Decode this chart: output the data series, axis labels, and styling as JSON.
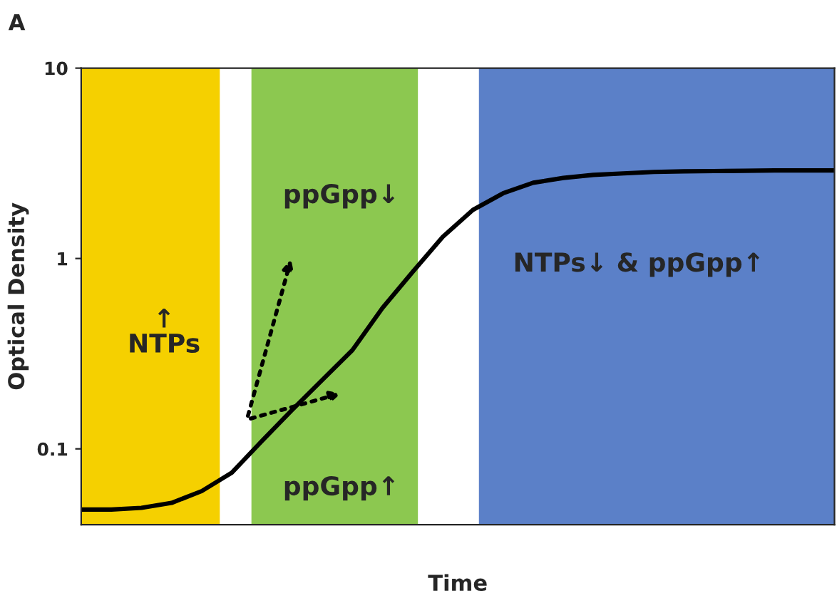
{
  "chart_data": {
    "type": "line",
    "title": "A",
    "xlabel": "Time",
    "ylabel": "Optical Density",
    "categories": [
      null,
      null,
      null,
      null,
      null,
      null,
      null,
      null,
      null,
      null,
      null,
      null,
      null,
      null,
      null,
      null,
      null,
      null,
      null,
      null,
      null,
      null,
      null,
      null,
      null,
      null
    ],
    "series": [
      {
        "color": "#000000",
        "values": [
          0.048,
          0.048,
          0.049,
          0.052,
          0.06,
          0.075,
          0.11,
          0.16,
          0.23,
          0.33,
          0.55,
          0.85,
          1.3,
          1.8,
          2.2,
          2.5,
          2.65,
          2.75,
          2.8,
          2.85,
          2.87,
          2.88,
          2.89,
          2.9,
          2.9,
          2.9
        ]
      }
    ],
    "log": "y",
    "ylim": [
      0.04,
      10
    ],
    "yticks": [
      0.1,
      1,
      10
    ],
    "tick_labels": "y",
    "grid": false,
    "legend": false,
    "marker": "none",
    "line_style": "solid",
    "annotations": [
      "↑\nNTPs",
      "ppGpp↓",
      "ppGpp↑",
      "NTPs↓ & ppGpp↑"
    ]
  }
}
